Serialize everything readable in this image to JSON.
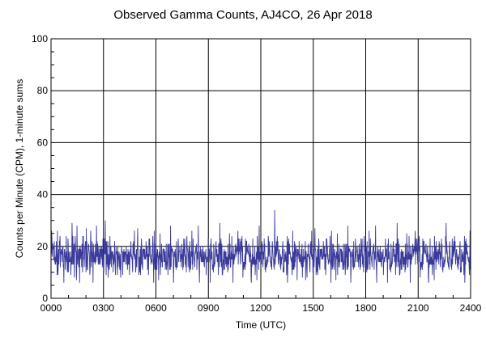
{
  "chart_data": {
    "type": "line",
    "title": "Observed Gamma Counts, AJ4CO, 26 Apr 2018",
    "xlabel": "Time (UTC)",
    "ylabel": "Counts per Minute (CPM), 1-minute sums",
    "xlim": [
      0,
      24
    ],
    "ylim": [
      0,
      100
    ],
    "x_ticks": [
      "0000",
      "0300",
      "0600",
      "0900",
      "1200",
      "1500",
      "1800",
      "2100",
      "2400"
    ],
    "y_ticks": [
      "0",
      "20",
      "40",
      "60",
      "80",
      "100"
    ],
    "grid": true,
    "legend": "none",
    "series": [
      {
        "color": "#3a3a9a",
        "sampling": "1-minute sums, 1440 points from 0000 to 2400 UTC",
        "mean": 16.5,
        "typical_range": [
          10,
          24
        ],
        "min": 6,
        "max": 34,
        "peaks": [
          {
            "x": 3.1,
            "y": 30
          },
          {
            "x": 12.8,
            "y": 34
          },
          {
            "x": 22.6,
            "y": 29
          },
          {
            "x": 1.2,
            "y": 29
          },
          {
            "x": 11.9,
            "y": 28
          }
        ]
      }
    ]
  }
}
